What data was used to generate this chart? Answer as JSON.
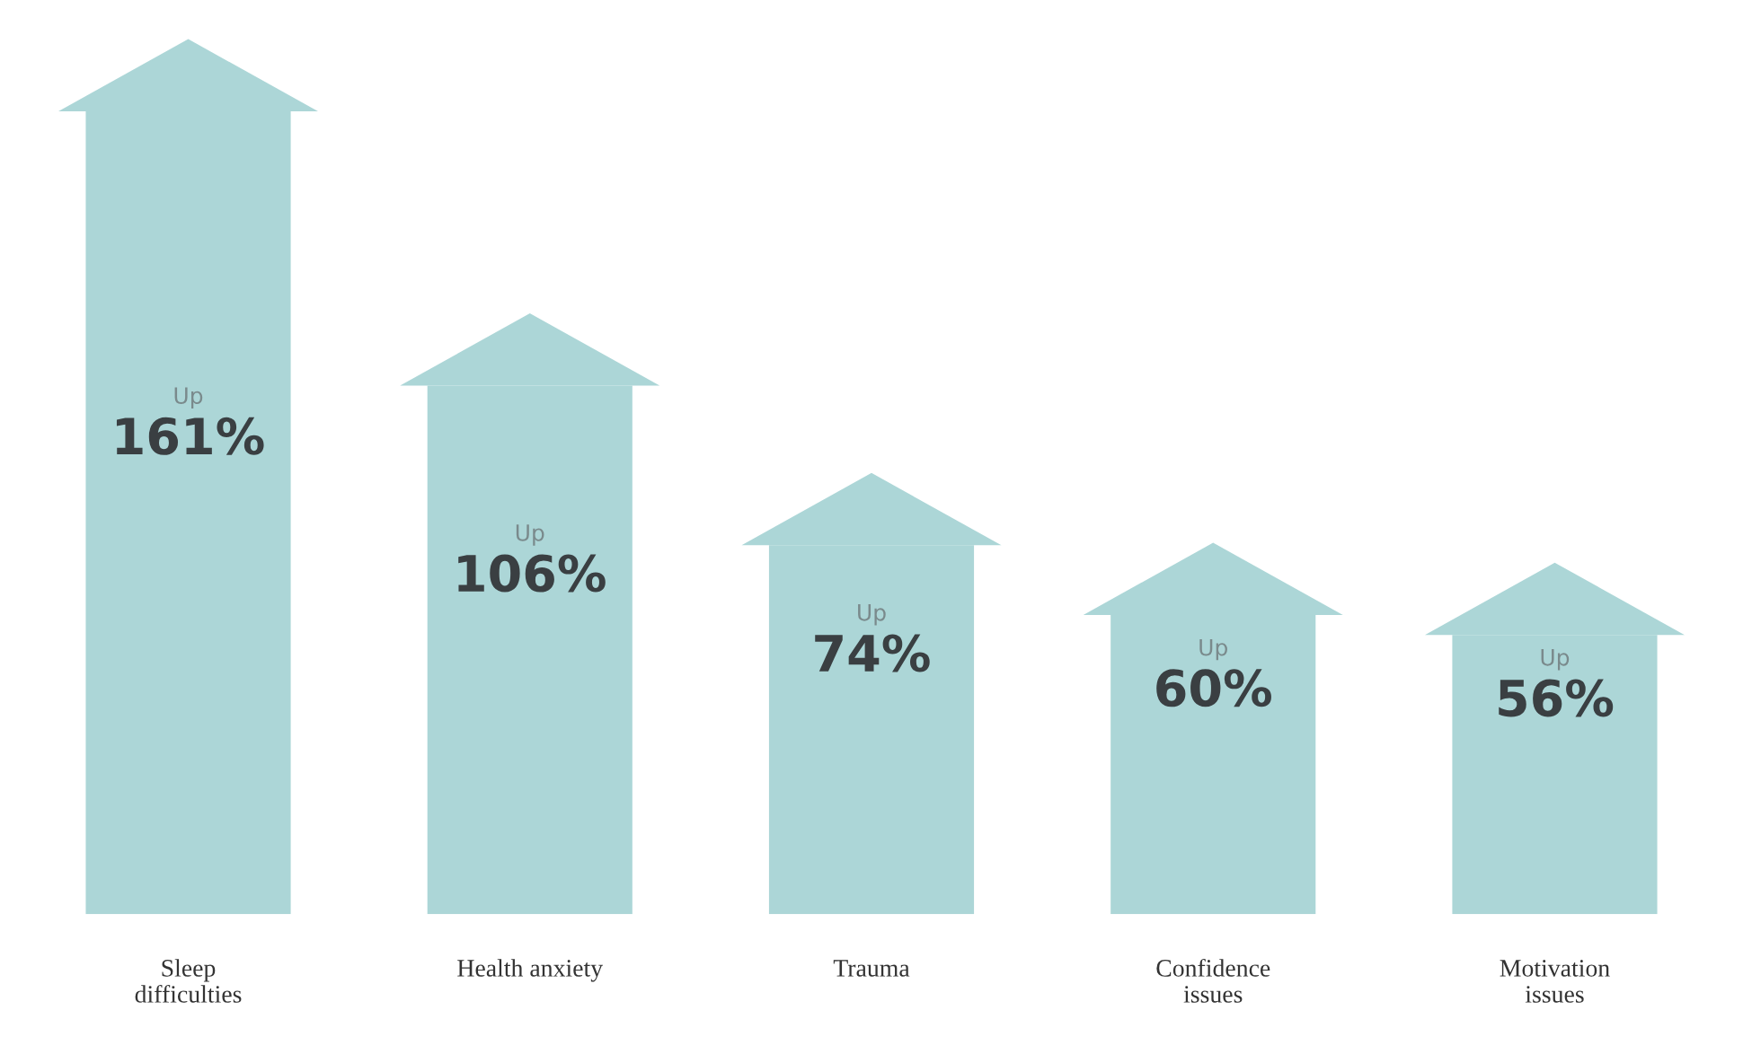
{
  "chart_data": {
    "type": "bar",
    "categories": [
      "Sleep\ndifficulties",
      "Health anxiety",
      "Trauma",
      "Confidence\nissues",
      "Motivation\nissues"
    ],
    "values": [
      161,
      106,
      74,
      60,
      56
    ],
    "color": "#acd6d7",
    "value_labels": [
      "Up\n161%",
      "Up\n106%",
      "Up\n74%",
      "Up\n60%",
      "Up\n56%"
    ],
    "tick_labels": "x",
    "grid": false,
    "legend": false
  }
}
